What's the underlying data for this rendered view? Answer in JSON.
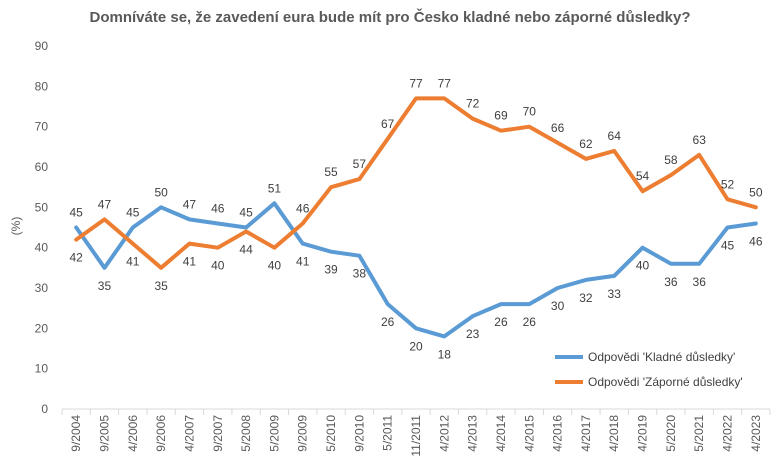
{
  "chart_data": {
    "type": "line",
    "title": "Domníváte se, že zavedení eura bude mít pro Česko kladné nebo záporné důsledky?",
    "ylabel": "(%)",
    "xlabel": "",
    "ylim": [
      0,
      90
    ],
    "yticks": [
      0,
      10,
      20,
      30,
      40,
      50,
      60,
      70,
      80,
      90
    ],
    "grid": false,
    "legend_position": "right",
    "categories": [
      "9/2004",
      "9/2005",
      "4/2006",
      "9/2006",
      "4/2007",
      "9/2007",
      "5/2008",
      "5/2009",
      "9/2009",
      "5/2010",
      "9/2010",
      "5/2011",
      "11/2011",
      "4/2012",
      "4/2013",
      "4/2014",
      "4/2015",
      "4/2016",
      "4/2017",
      "4/2018",
      "4/2019",
      "5/2020",
      "5/2021",
      "4/2022",
      "4/2023"
    ],
    "series": [
      {
        "name": "Odpovědi 'Kladné důsledky'",
        "color": "#5B9BD5",
        "values": [
          45,
          35,
          45,
          50,
          47,
          46,
          45,
          51,
          41,
          39,
          38,
          26,
          20,
          18,
          23,
          26,
          26,
          30,
          32,
          33,
          40,
          36,
          36,
          45,
          46
        ]
      },
      {
        "name": "Odpovědi 'Záporné důsledky'",
        "color": "#ED7D31",
        "values": [
          42,
          47,
          41,
          35,
          41,
          40,
          44,
          40,
          46,
          55,
          57,
          67,
          77,
          77,
          72,
          69,
          70,
          66,
          62,
          64,
          54,
          58,
          63,
          52,
          50
        ]
      }
    ]
  }
}
